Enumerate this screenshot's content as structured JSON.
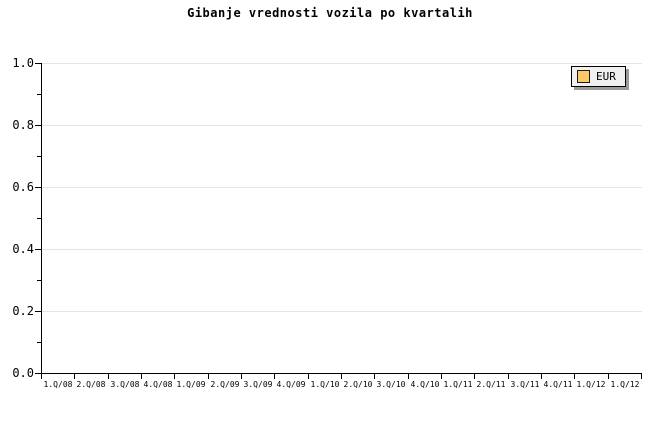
{
  "chart_data": {
    "type": "line",
    "title": "Gibanje vrednosti vozila po kvartalih",
    "xlabel": "",
    "ylabel": "",
    "ylim": [
      0.0,
      1.0
    ],
    "y_tick_labels": [
      "1.0",
      "0.8",
      "0.6",
      "0.4",
      "0.2",
      "0.0"
    ],
    "y_minor_tick_step": 0.1,
    "x_tick_labels": [
      "1.Q/08",
      "2.Q/08",
      "3.Q/08",
      "4.Q/08",
      "1.Q/09",
      "2.Q/09",
      "3.Q/09",
      "4.Q/09",
      "1.Q/10",
      "2.Q/10",
      "3.Q/10",
      "4.Q/10",
      "1.Q/11",
      "2.Q/11",
      "3.Q/11",
      "4.Q/11",
      "1.Q/12",
      "1.Q/12"
    ],
    "grid": "horizontal",
    "legend": {
      "position": "top-right",
      "entries": [
        {
          "label": "EUR",
          "color": "#fdc868"
        }
      ]
    },
    "series": [
      {
        "name": "EUR",
        "values": []
      }
    ]
  },
  "colors": {
    "background": "#ffffff",
    "axis": "#000000",
    "gridline": "#e4e4e4",
    "text": "#000000",
    "legend_background": "#f0f0f0",
    "legend_border": "#000000",
    "legend_shadow": "#9a9a9a",
    "eur_swatch": "#fdc868"
  }
}
